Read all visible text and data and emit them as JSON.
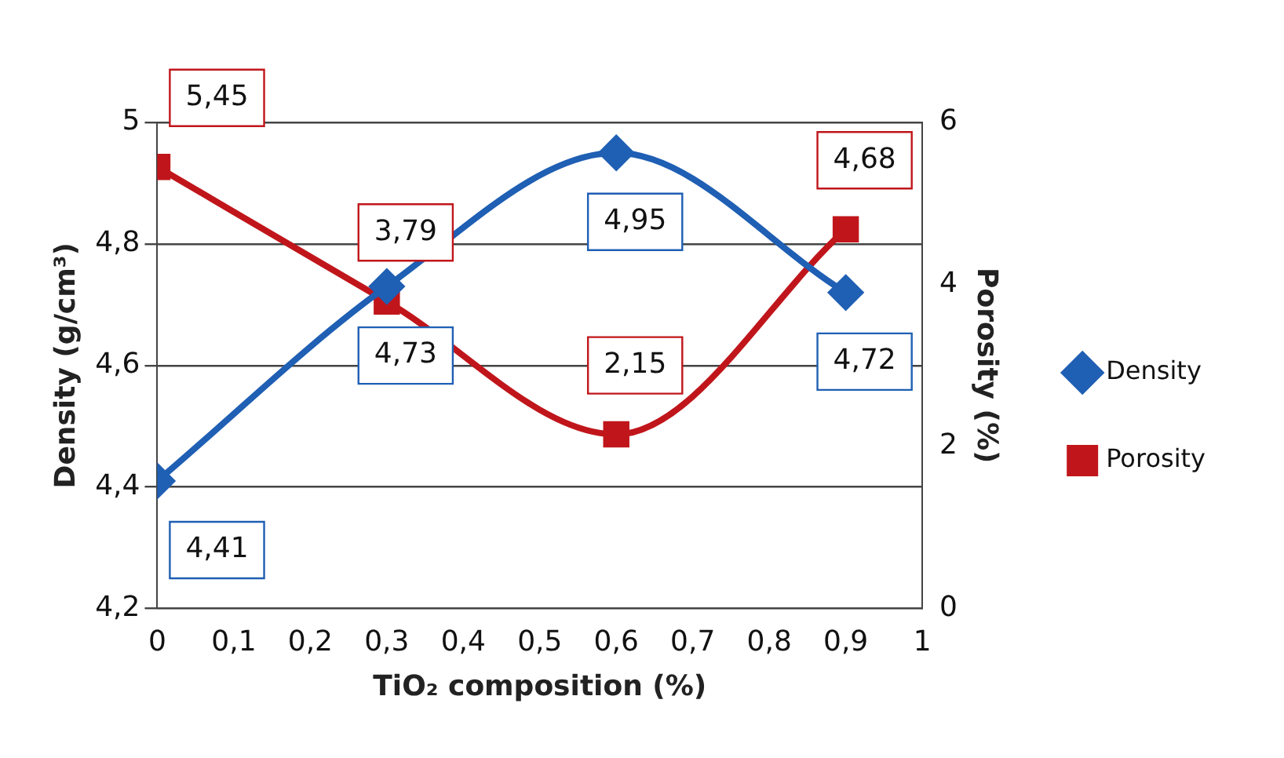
{
  "chart_data": {
    "type": "line",
    "xlabel": "TiO₂ composition (%)",
    "ylabel": "Density (g/cm³)",
    "y2label": "Porosity (%)",
    "x": [
      0,
      0.3,
      0.6,
      0.9
    ],
    "series": [
      {
        "name": "Density",
        "color": "#1f5fb4",
        "marker": "diamond",
        "values": [
          4.41,
          4.73,
          4.95,
          4.72
        ],
        "value_labels": [
          "4,41",
          "4,73",
          "4,95",
          "4,72"
        ]
      },
      {
        "name": "Porosity",
        "color": "#c0161b",
        "marker": "square",
        "axis": "y2",
        "values": [
          5.45,
          3.79,
          2.15,
          4.68
        ],
        "value_labels": [
          "5,45",
          "3,79",
          "2,15",
          "4,68"
        ]
      }
    ],
    "xlim": [
      0,
      1
    ],
    "xticks": [
      {
        "value": 0,
        "label": "0"
      },
      {
        "value": 0.1,
        "label": "0,1"
      },
      {
        "value": 0.2,
        "label": "0,2"
      },
      {
        "value": 0.3,
        "label": "0,3"
      },
      {
        "value": 0.4,
        "label": "0,4"
      },
      {
        "value": 0.5,
        "label": "0,5"
      },
      {
        "value": 0.6,
        "label": "0,6"
      },
      {
        "value": 0.7,
        "label": "0,7"
      },
      {
        "value": 0.8,
        "label": "0,8"
      },
      {
        "value": 0.9,
        "label": "0,9"
      },
      {
        "value": 1,
        "label": "1"
      }
    ],
    "ylim": [
      4.2,
      5
    ],
    "yticks": [
      {
        "value": 4.2,
        "label": "4,2"
      },
      {
        "value": 4.4,
        "label": "4,4"
      },
      {
        "value": 4.6,
        "label": "4,6"
      },
      {
        "value": 4.8,
        "label": "4,8"
      },
      5
    ],
    "y2lim": [
      0,
      6
    ],
    "y2ticks": [
      0,
      2,
      4,
      6
    ],
    "grid": "y",
    "legend": "right"
  }
}
